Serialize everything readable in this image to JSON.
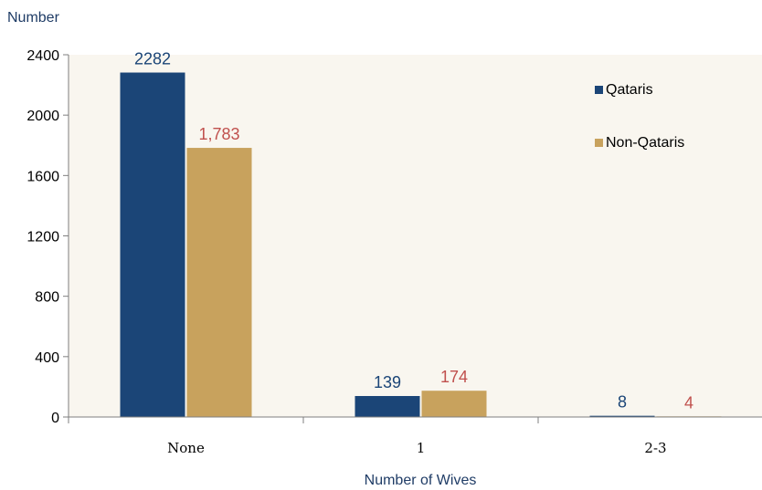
{
  "chart_data": {
    "type": "bar",
    "title": "",
    "ylabel": "Number",
    "xlabel": "Number of Wives",
    "categories": [
      "None",
      "1",
      "2-3"
    ],
    "series": [
      {
        "name": "Qataris",
        "values": [
          2282,
          139,
          8
        ],
        "labels": [
          "2282",
          "139",
          "8"
        ],
        "color": "#1b4577",
        "label_color": "#1b4577"
      },
      {
        "name": "Non-Qataris",
        "values": [
          1783,
          174,
          4
        ],
        "labels": [
          "1,783",
          "174",
          "4"
        ],
        "color": "#c8a25d",
        "label_color": "#c0504d"
      }
    ],
    "ylim": [
      0,
      2400
    ],
    "yticks": [
      0,
      400,
      800,
      1200,
      1600,
      2000,
      2400
    ],
    "grid": false,
    "legend": "top-right",
    "plot_background": "#f9f6ef",
    "text_color": "#1f3c66"
  }
}
